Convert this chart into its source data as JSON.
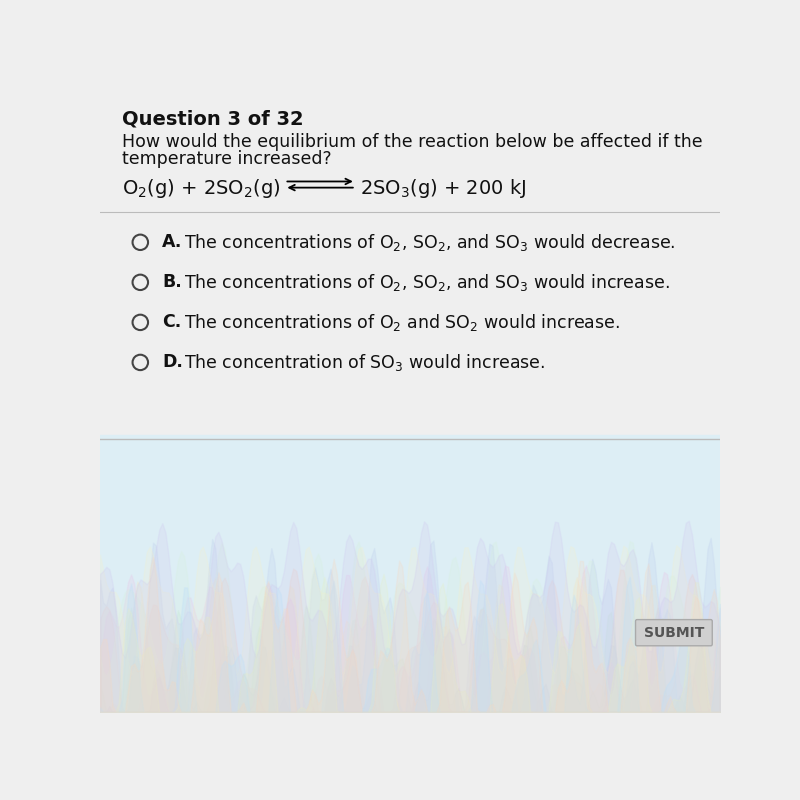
{
  "title": "Question 3 of 32",
  "question_line1": "How would the equilibrium of the reaction below be affected if the",
  "question_line2": "temperature increased?",
  "options": [
    {
      "letter": "A",
      "text_math": "The concentrations of O$_2$, SO$_2$, and SO$_3$ would decrease."
    },
    {
      "letter": "B",
      "text_math": "The concentrations of O$_2$, SO$_2$, and SO$_3$ would increase."
    },
    {
      "letter": "C",
      "text_math": "The concentrations of O$_2$ and SO$_2$ would increase."
    },
    {
      "letter": "D",
      "text_math": "The concentration of SO$_3$ would increase."
    }
  ],
  "submit_label": "SUBMIT",
  "bg_top_color": "#efefef",
  "bg_bottom_color": "#ddeef5",
  "separator_color": "#bbbbbb",
  "text_color": "#111111",
  "circle_color": "#444444",
  "submit_bg": "#d0d0d0",
  "submit_text_color": "#555555"
}
